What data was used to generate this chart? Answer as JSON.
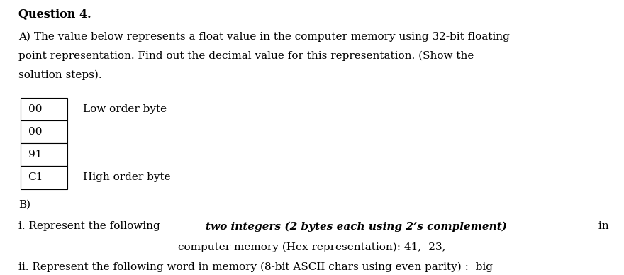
{
  "background_color": "#ffffff",
  "title_text": "Question 4.",
  "line_A": "A) The value below represents a float value in the computer memory using 32-bit floating",
  "line_A2": "point representation. Find out the decimal value for this representation. (Show the",
  "line_A3": "solution steps).",
  "table_values": [
    "00",
    "00",
    "91",
    "C1"
  ],
  "label_low": "Low order byte",
  "label_high": "High order byte",
  "section_B": "B)",
  "line_i_pre": "i. Represent the following ",
  "line_i_bold": "two integers (2 bytes each using 2’s complement)",
  "line_i_post": " in",
  "line_i2": "computer memory (Hex representation): 41, -23,",
  "line_ii": "ii. Represent the following word in memory (8-bit ASCII chars using even parity) :  big",
  "font_size_body": 11.0,
  "font_size_title": 11.5,
  "font_family": "DejaVu Serif"
}
